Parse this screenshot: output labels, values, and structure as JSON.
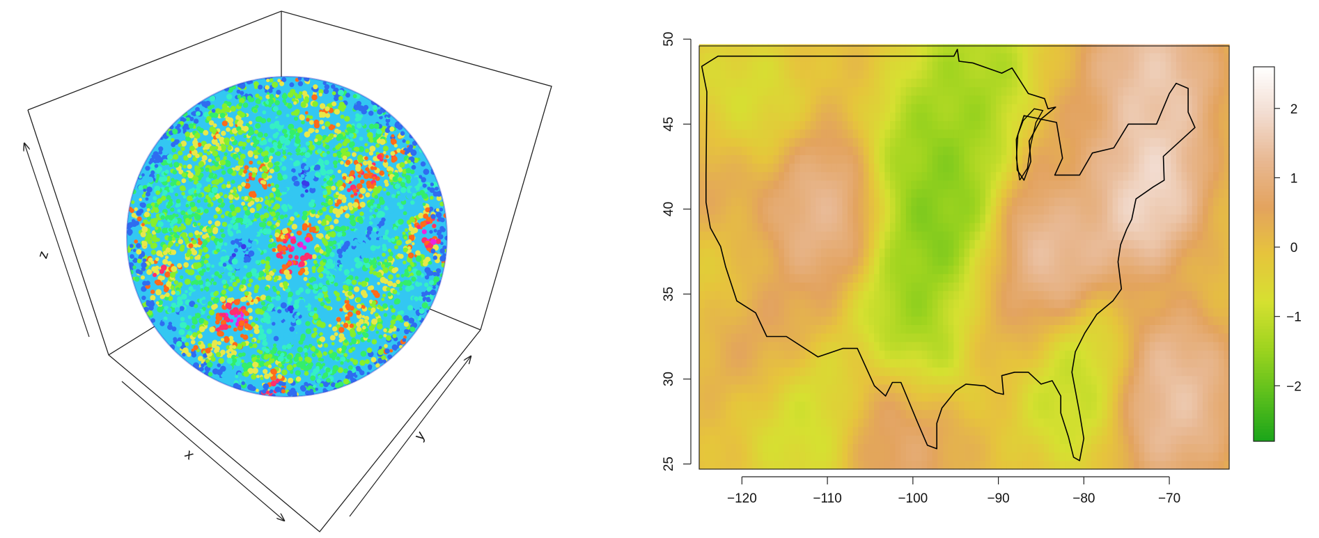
{
  "chart_data": [
    {
      "type": "scatter",
      "subtype": "3d-sphere",
      "title": "",
      "xlabel": "x",
      "ylabel": "y",
      "zlabel": "z",
      "grid": false,
      "colors": [
        "#3a3ae8",
        "#2f6cf0",
        "#33c7f2",
        "#35f0c4",
        "#34ee6a",
        "#86ef2c",
        "#e8e84a",
        "#ff6a1a",
        "#ff2f6c",
        "#ee22dd",
        "#ffffff"
      ]
    },
    {
      "type": "heatmap",
      "title": "",
      "xlabel": "",
      "ylabel": "",
      "xlim": [
        -125,
        -63
      ],
      "ylim": [
        24.7,
        49.6
      ],
      "x_ticks": [
        -120,
        -110,
        -100,
        -90,
        -80,
        -70
      ],
      "y_ticks": [
        25,
        30,
        35,
        40,
        45,
        50
      ],
      "x_tick_labels": [
        "−120",
        "−110",
        "−100",
        "−90",
        "−80",
        "−70"
      ],
      "y_tick_labels": [
        "25",
        "30",
        "35",
        "40",
        "45",
        "50"
      ],
      "colorbar": {
        "range": [
          -2.8,
          2.6
        ],
        "ticks": [
          2,
          1,
          0,
          -1,
          -2
        ],
        "tick_labels": [
          "2",
          "1",
          "0",
          "−1",
          "−2"
        ],
        "placement": "right",
        "palette": [
          "#1aa41a",
          "#5cbf1c",
          "#9fd41f",
          "#d6e031",
          "#e6c43c",
          "#e3a35e",
          "#e8b892",
          "#f2dcd0",
          "#ffffff"
        ]
      },
      "overlay": "US outline",
      "features": [
        {
          "lon": -96,
          "lat": 38,
          "value": -2.2
        },
        {
          "lon": -97,
          "lat": 43,
          "value": -1.9
        },
        {
          "lon": -99,
          "lat": 33,
          "value": -1.8
        },
        {
          "lon": -93,
          "lat": 47.5,
          "value": -1.6
        },
        {
          "lon": -112,
          "lat": 28,
          "value": -1.1
        },
        {
          "lon": -120,
          "lat": 45,
          "value": -1.0
        },
        {
          "lon": -123,
          "lat": 38,
          "value": -0.7
        },
        {
          "lon": -81,
          "lat": 30,
          "value": -1.3
        },
        {
          "lon": -74,
          "lat": 41.5,
          "value": 2.5
        },
        {
          "lon": -72,
          "lat": 47.5,
          "value": 1.9
        },
        {
          "lon": -85,
          "lat": 37,
          "value": 1.9
        },
        {
          "lon": -112,
          "lat": 40,
          "value": 1.5
        },
        {
          "lon": -123,
          "lat": 41,
          "value": 1.3
        },
        {
          "lon": -70,
          "lat": 29,
          "value": 1.8
        },
        {
          "lon": -102,
          "lat": 27,
          "value": 1.0
        },
        {
          "lon": -90,
          "lat": 34,
          "value": 0.4
        },
        {
          "lon": -117,
          "lat": 33,
          "value": 0.7
        },
        {
          "lon": -80,
          "lat": 43,
          "value": 0.5
        }
      ]
    }
  ]
}
